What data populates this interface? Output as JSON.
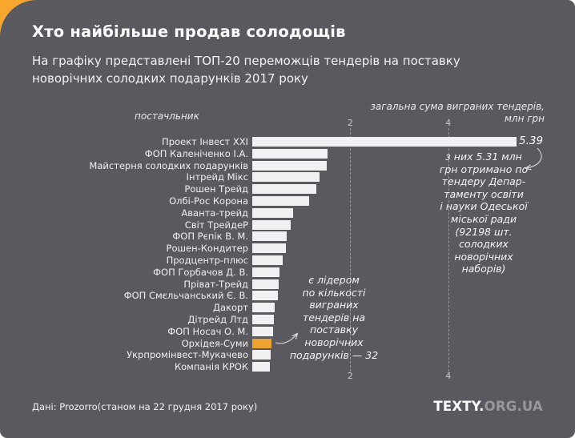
{
  "header": {
    "title": "Хто найбільше продав солодощів",
    "subtitle": "На графіку представлені ТОП-20 переможців тендерів на поставку новорічних солодких подарунків 2017 року"
  },
  "chart_data": {
    "type": "bar",
    "orientation": "horizontal",
    "col_header_left": "постачльник",
    "col_header_right": "загальна сума виграних тендерів,\nмлн грн",
    "x_ticks": [
      2,
      4
    ],
    "xlim": [
      0,
      5.9
    ],
    "grid": "dashed-vertical",
    "categories": [
      "Проект Інвест XXI",
      "ФОП Каленіченко І.А.",
      "Майстерня солодких подарунків",
      "Інтрейд Мікс",
      "Рошен Трейд",
      "Олбі-Рос Корона",
      "Аванта-трейд",
      "Світ ТрейдеР",
      "ФОП Рєпік В. М.",
      "Рошен-Кондитер",
      "Продцентр-плюс",
      "ФОП Горбачов Д. В.",
      "Пріват-Трейд",
      "ФОП Смєльчанський Є. В.",
      "Дакорт",
      "Дітрейд Лтд",
      "ФОП Носач О. М.",
      "Орхідея-Суми",
      "Укрпромінвест-Мукачево",
      "Компанія КРОК"
    ],
    "values": [
      5.39,
      1.54,
      1.52,
      1.37,
      1.31,
      1.16,
      0.83,
      0.78,
      0.7,
      0.69,
      0.62,
      0.56,
      0.54,
      0.53,
      0.46,
      0.44,
      0.42,
      0.39,
      0.38,
      0.36
    ],
    "value_labels": [
      {
        "index": 0,
        "text": "5.39"
      }
    ],
    "highlight_index": 17,
    "annotations": [
      {
        "target": "top-bar",
        "lines": [
          "з них 5.31 млн",
          "грн отримано по",
          "тендеру Депар-",
          "таменту освіти",
          "і науки Одеської",
          "міської ради",
          "(92198 шт.",
          "солодких",
          "новорічних",
          "наборів)"
        ]
      },
      {
        "target": "highlighted-bar",
        "lines": [
          "є лідером",
          "по кількості",
          "виграних",
          "тендерів на",
          "поставку",
          "новорічних",
          "подарунків — 32"
        ]
      }
    ]
  },
  "footer": {
    "source": "Дані: Prozorro(станом на 22 грудня 2017 року)",
    "logo_bold": "TEXTY.",
    "logo_light": "ORG.UA"
  },
  "colors": {
    "panel_background": "#5a595f",
    "corner_accent": "#f8a72e",
    "bar_default": "#f1f0f2",
    "bar_highlight": "#f0a22f",
    "text_primary": "#ffffff"
  }
}
